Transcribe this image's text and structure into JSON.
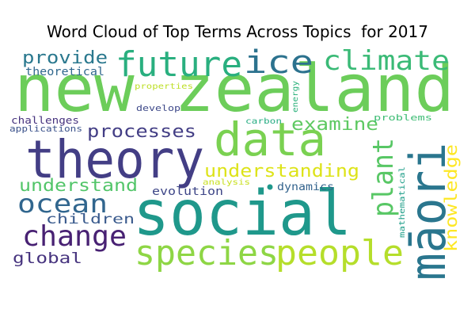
{
  "chart_data": {
    "type": "wordcloud",
    "title": "Word Cloud of Top Terms Across Topics  for 2017",
    "words": [
      {
        "text": "new zealand",
        "color": "#6ccd5a"
      },
      {
        "text": "social",
        "color": "#1f988b"
      },
      {
        "text": "theory",
        "color": "#433e85"
      },
      {
        "text": "data",
        "color": "#7ad151"
      },
      {
        "text": "māori",
        "color": "#2a768e"
      },
      {
        "text": "people",
        "color": "#b5de2b"
      },
      {
        "text": "species",
        "color": "#8ed645"
      },
      {
        "text": "future",
        "color": "#29af7f"
      },
      {
        "text": "ice",
        "color": "#2c728e"
      },
      {
        "text": "climate",
        "color": "#3aba76"
      },
      {
        "text": "change",
        "color": "#482173"
      },
      {
        "text": "ocean",
        "color": "#31668e"
      },
      {
        "text": "plant",
        "color": "#58c765"
      },
      {
        "text": "understanding",
        "color": "#dde318"
      },
      {
        "text": "processes",
        "color": "#433e85"
      },
      {
        "text": "understand",
        "color": "#52c569"
      },
      {
        "text": "provide",
        "color": "#2a788e"
      },
      {
        "text": "examine",
        "color": "#5ec962"
      },
      {
        "text": "knowledge",
        "color": "#fde725"
      },
      {
        "text": "children",
        "color": "#38598c"
      },
      {
        "text": "global",
        "color": "#46337e"
      },
      {
        "text": "evolution",
        "color": "#3f4788"
      },
      {
        "text": "dynamics",
        "color": "#33638d"
      },
      {
        "text": "theoretical",
        "color": "#31688e"
      },
      {
        "text": "challenges",
        "color": "#46327e"
      },
      {
        "text": "applications",
        "color": "#3b528b"
      },
      {
        "text": "develop",
        "color": "#3e4989"
      },
      {
        "text": "problems",
        "color": "#3dbc74"
      },
      {
        "text": "carbon",
        "color": "#25ac82"
      },
      {
        "text": "energy",
        "color": "#2db27d"
      },
      {
        "text": "properties",
        "color": "#bddf26"
      },
      {
        "text": "analysis",
        "color": "#c8e020"
      },
      {
        "text": "mathematical",
        "color": "#1f9e89"
      }
    ]
  }
}
